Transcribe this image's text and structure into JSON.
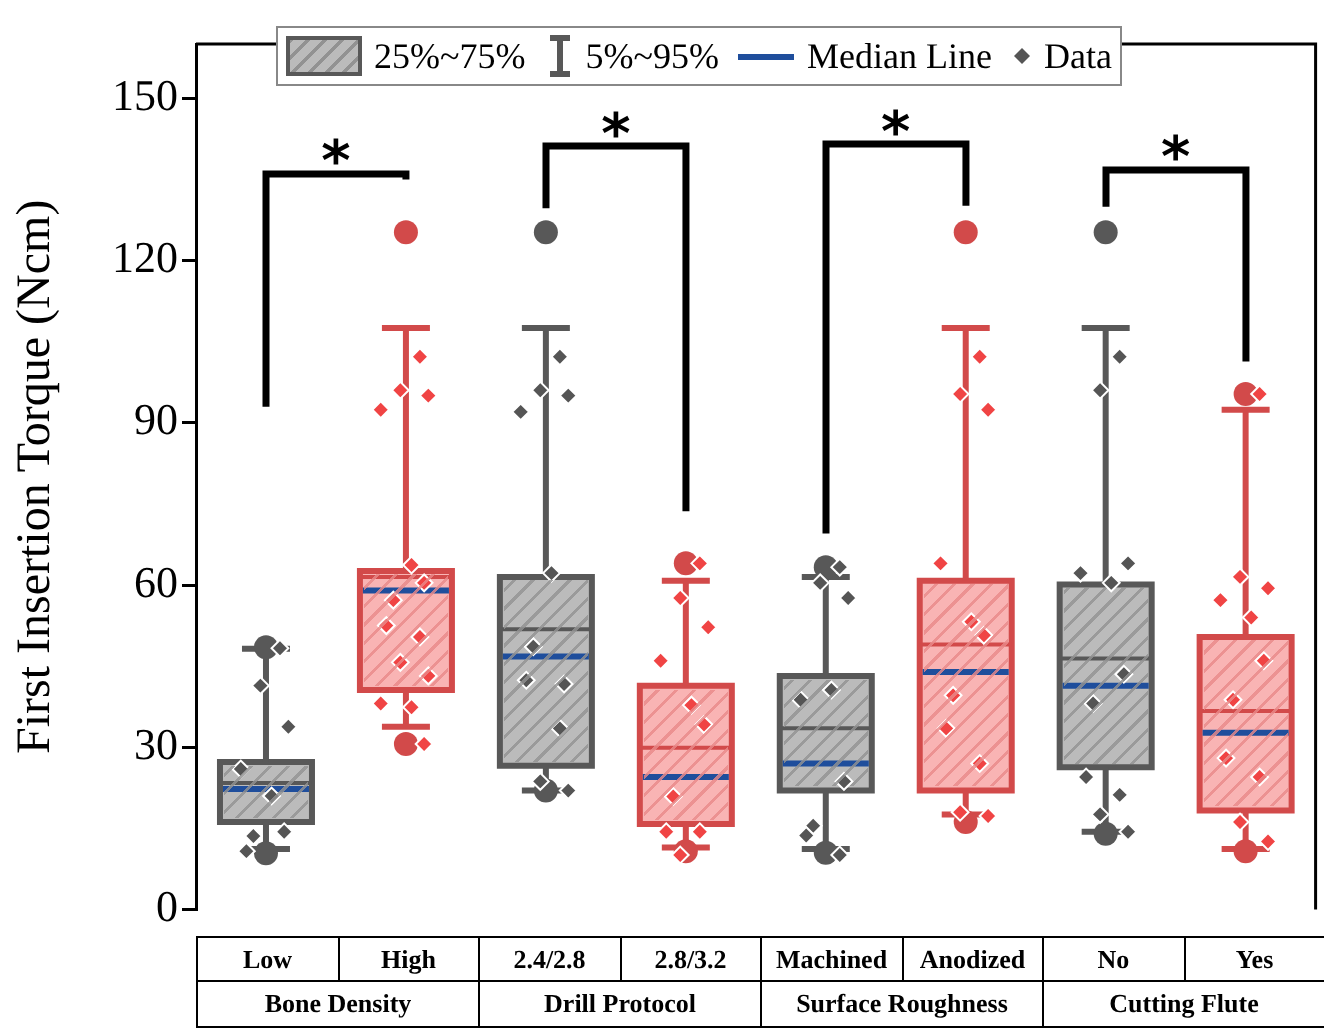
{
  "chart_data": {
    "type": "box",
    "ylabel": "First Insertion Torque (Ncm)",
    "categories": [
      "Low",
      "High",
      "2.4/2.8",
      "2.8/3.2",
      "Machined",
      "Anodized",
      "No",
      "Yes"
    ],
    "ylim": [
      0,
      160
    ],
    "yticks": [
      0,
      30,
      60,
      90,
      120,
      150
    ],
    "legend": "top",
    "grid": false,
    "annotations": [
      "5%~95%",
      "Median Line",
      "*",
      "*",
      "*",
      "*",
      "Bone Density",
      "Drill Protocol",
      "Surface Roughness",
      "Cutting Flute"
    ],
    "series": [
      {
        "name": "25%~75%",
        "colors": [
          "#bbbbbb",
          "#f9b4b4",
          "#bbbbbb",
          "#f9b4b4",
          "#bbbbbb",
          "#f9b4b4",
          "#bbbbbb",
          "#f9b4b4"
        ],
        "boxes": [
          {
            "low": 11.2,
            "q1": 16.2,
            "median": 22.3,
            "q3": 27.3,
            "high": 48.2,
            "mean": 23.4,
            "outliers": [
              10.4,
              48.5
            ]
          },
          {
            "low": 33.8,
            "q1": 40.6,
            "median": 59,
            "q3": 62.6,
            "high": 107.5,
            "mean": 61.5,
            "outliers": [
              30.6,
              125.2
            ]
          },
          {
            "low": 22,
            "q1": 26.6,
            "median": 46.8,
            "q3": 61.5,
            "high": 107.5,
            "mean": 51.8,
            "outliers": [
              22,
              125.2
            ]
          },
          {
            "low": 11.5,
            "q1": 15.8,
            "median": 24.5,
            "q3": 41.4,
            "high": 60.8,
            "mean": 29.9,
            "outliers": [
              10.8,
              64
            ]
          },
          {
            "low": 11.2,
            "q1": 22,
            "median": 27,
            "q3": 43.2,
            "high": 61.5,
            "mean": 33.5,
            "outliers": [
              10.5,
              63.3
            ]
          },
          {
            "low": 17.6,
            "q1": 22,
            "median": 43.9,
            "q3": 60.8,
            "high": 107.5,
            "mean": 49,
            "outliers": [
              16.2,
              125.2
            ]
          },
          {
            "low": 14.4,
            "q1": 26.3,
            "median": 41.4,
            "q3": 60.1,
            "high": 107.5,
            "mean": 46.4,
            "outliers": [
              14,
              125.2
            ]
          },
          {
            "low": 11.2,
            "q1": 18.3,
            "median": 32.7,
            "q3": 50.4,
            "high": 92.4,
            "mean": 36.7,
            "outliers": [
              10.8,
              95.3
            ]
          }
        ]
      },
      {
        "name": "Data",
        "type": "scatter",
        "marker": "diamond",
        "color": "#555555",
        "colors": [
          "#555555",
          "#555555",
          "#555555",
          "#555555",
          "#555555",
          "#555555",
          "#555555",
          "#555555",
          "#f04444",
          "#f04444",
          "#f04444",
          "#f04444",
          "#f04444",
          "#f04444",
          "#f04444",
          "#f04444",
          "#f04444",
          "#f04444",
          "#f04444",
          "#f04444",
          "#f04444",
          "#f04444",
          "#555555",
          "#555555",
          "#555555",
          "#555555",
          "#555555",
          "#555555",
          "#555555",
          "#555555",
          "#555555",
          "#555555",
          "#555555",
          "#f04444",
          "#f04444",
          "#f04444",
          "#f04444",
          "#f04444",
          "#f04444",
          "#f04444",
          "#f04444",
          "#f04444",
          "#f04444",
          "#555555",
          "#555555",
          "#555555",
          "#555555",
          "#555555",
          "#555555",
          "#555555",
          "#555555",
          "#555555",
          "#f04444",
          "#f04444",
          "#f04444",
          "#f04444",
          "#f04444",
          "#f04444",
          "#f04444",
          "#f04444",
          "#f04444",
          "#f04444",
          "#f04444",
          "#555555",
          "#555555",
          "#555555",
          "#555555",
          "#555555",
          "#555555",
          "#555555",
          "#555555",
          "#555555",
          "#555555",
          "#555555",
          "#f04444",
          "#f04444",
          "#f04444",
          "#f04444",
          "#f04444",
          "#f04444",
          "#f04444",
          "#f04444",
          "#f04444",
          "#f04444",
          "#f04444"
        ],
        "x": [
          "Low",
          "Low",
          "Low",
          "Low",
          "Low",
          "Low",
          "Low",
          "Low",
          "High",
          "High",
          "High",
          "High",
          "High",
          "High",
          "High",
          "High",
          "High",
          "High",
          "High",
          "High",
          "High",
          "High",
          "2.4/2.8",
          "2.4/2.8",
          "2.4/2.8",
          "2.4/2.8",
          "2.4/2.8",
          "2.4/2.8",
          "2.4/2.8",
          "2.4/2.8",
          "2.4/2.8",
          "2.4/2.8",
          "2.4/2.8",
          "2.8/3.2",
          "2.8/3.2",
          "2.8/3.2",
          "2.8/3.2",
          "2.8/3.2",
          "2.8/3.2",
          "2.8/3.2",
          "2.8/3.2",
          "2.8/3.2",
          "2.8/3.2",
          "Machined",
          "Machined",
          "Machined",
          "Machined",
          "Machined",
          "Machined",
          "Machined",
          "Machined",
          "Machined",
          "Anodized",
          "Anodized",
          "Anodized",
          "Anodized",
          "Anodized",
          "Anodized",
          "Anodized",
          "Anodized",
          "Anodized",
          "Anodized",
          "Anodized",
          "No",
          "No",
          "No",
          "No",
          "No",
          "No",
          "No",
          "No",
          "No",
          "No",
          "No",
          "Yes",
          "Yes",
          "Yes",
          "Yes",
          "Yes",
          "Yes",
          "Yes",
          "Yes",
          "Yes",
          "Yes",
          "Yes"
        ],
        "values": [
          48.3,
          41.4,
          33.8,
          26,
          21,
          14.4,
          13.6,
          10.8,
          102.2,
          96,
          95,
          92.4,
          63.7,
          60.4,
          57.2,
          52.5,
          50.4,
          45.7,
          43.2,
          38.1,
          37.4,
          30.6,
          102.2,
          96,
          95,
          92,
          62.2,
          41.7,
          48.6,
          42.4,
          33.5,
          23.7,
          22,
          64,
          57.6,
          52.2,
          46,
          37.8,
          34.2,
          20.9,
          14.4,
          14.4,
          10.1,
          63.3,
          60.4,
          57.6,
          38.8,
          40.6,
          23.7,
          15.5,
          13.7,
          10.1,
          102.2,
          95.3,
          92.4,
          64,
          53.2,
          50.7,
          39.6,
          33.5,
          27,
          18,
          17.3,
          102.2,
          96,
          64,
          62.2,
          60.4,
          43.5,
          38.1,
          24.5,
          21.2,
          17.6,
          14.4,
          95.3,
          61.5,
          59.4,
          57.2,
          54,
          46,
          38.8,
          28,
          24.5,
          16.2,
          12.6
        ]
      }
    ]
  }
}
